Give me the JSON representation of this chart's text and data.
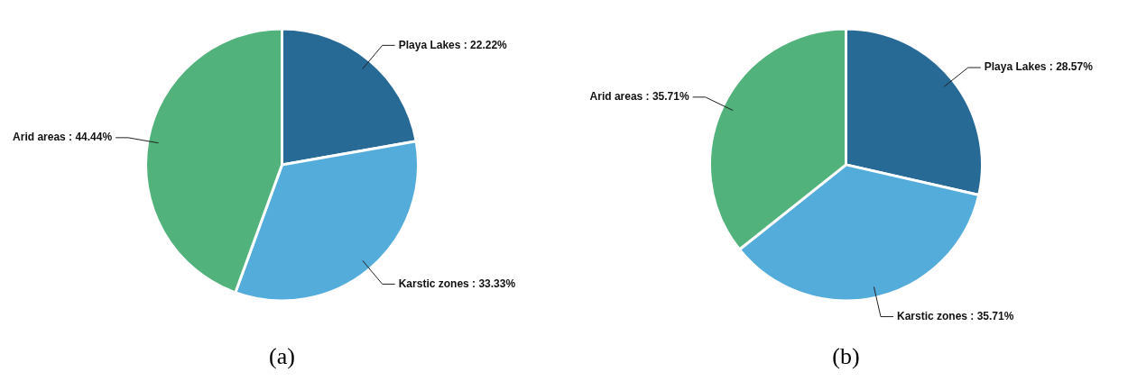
{
  "chart_data": [
    {
      "type": "pie",
      "title": "(a)",
      "categories": [
        "Playa Lakes",
        "Karstic zones",
        "Arid areas"
      ],
      "values": [
        22.22,
        33.33,
        44.44
      ],
      "colors": [
        "#276a96",
        "#54acdb",
        "#52b27b"
      ],
      "value_labels": [
        "22.22%",
        "33.33%",
        "44.44%"
      ]
    },
    {
      "type": "pie",
      "title": "(b)",
      "categories": [
        "Playa Lakes",
        "Karstic zones",
        "Arid areas"
      ],
      "values": [
        28.57,
        35.71,
        35.71
      ],
      "colors": [
        "#276a96",
        "#54acdb",
        "#52b27b"
      ],
      "value_labels": [
        "28.57%",
        "35.71%",
        "35.71%"
      ]
    }
  ]
}
